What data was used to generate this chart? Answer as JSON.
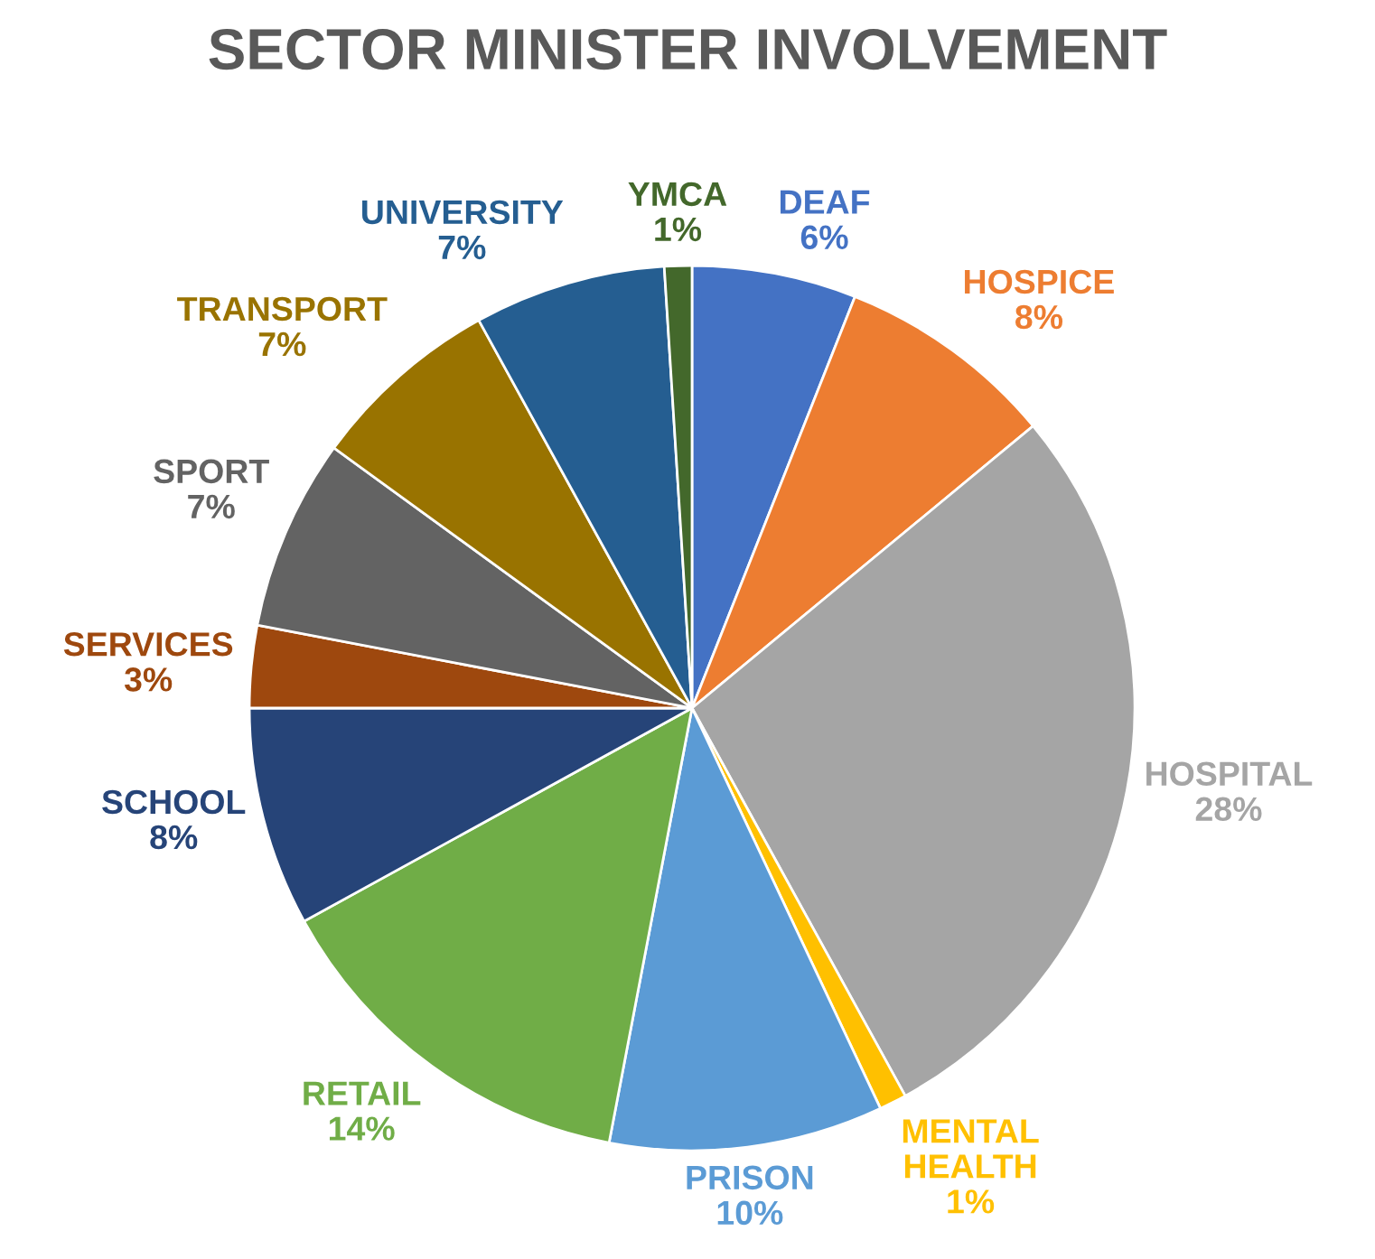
{
  "chart_data": {
    "type": "pie",
    "title": "SECTOR MINISTER INVOLVEMENT",
    "categories": [
      "DEAF",
      "HOSPICE",
      "HOSPITAL",
      "MENTAL HEALTH",
      "PRISON",
      "RETAIL",
      "SCHOOL",
      "SERVICES",
      "SPORT",
      "TRANSPORT",
      "UNIVERSITY",
      "YMCA"
    ],
    "values": [
      6,
      8,
      28,
      1,
      10,
      14,
      8,
      3,
      7,
      7,
      7,
      1
    ],
    "value_labels": [
      "6%",
      "8%",
      "28%",
      "1%",
      "10%",
      "14%",
      "8%",
      "3%",
      "7%",
      "7%",
      "7%",
      "1%"
    ],
    "colors": [
      "#4472c4",
      "#ed7d31",
      "#a5a5a5",
      "#ffc000",
      "#5b9bd5",
      "#70ad47",
      "#264478",
      "#9e480e",
      "#636363",
      "#997300",
      "#255e91",
      "#43682b"
    ],
    "legend": false
  }
}
